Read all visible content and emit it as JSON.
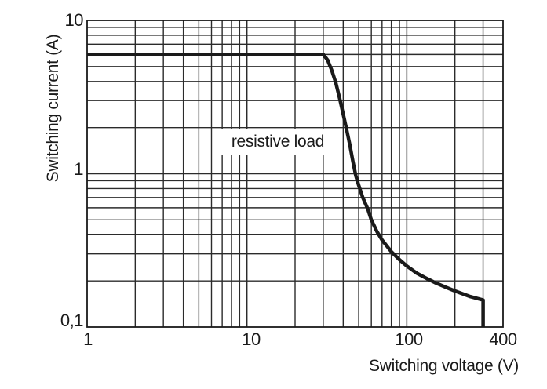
{
  "figure": {
    "annotation": "resistive load"
  },
  "chart_data": {
    "type": "line",
    "title": "",
    "grid": true,
    "legend": "none",
    "x_axis": {
      "label": "Switching voltage (V)",
      "scale": "log",
      "min": 1,
      "max": 400,
      "tick_labels": [
        "1",
        "10",
        "100",
        "400"
      ],
      "tick_values": [
        1,
        10,
        100,
        400
      ],
      "minor_gridlines": [
        2,
        3,
        4,
        5,
        6,
        7,
        8,
        9,
        20,
        30,
        40,
        50,
        60,
        70,
        80,
        90,
        200,
        300
      ]
    },
    "y_axis": {
      "label": "Switching current (A)",
      "scale": "log",
      "min": 0.1,
      "max": 10,
      "tick_labels": [
        "0,1",
        "1",
        "10"
      ],
      "tick_values": [
        0.1,
        1,
        10
      ],
      "minor_gridlines": [
        0.2,
        0.3,
        0.4,
        0.5,
        0.6,
        0.7,
        0.8,
        0.9,
        2,
        3,
        4,
        5,
        6,
        7,
        8,
        9
      ]
    },
    "series": [
      {
        "name": "resistive load",
        "points": [
          [
            1,
            6
          ],
          [
            5,
            6
          ],
          [
            10,
            6
          ],
          [
            20,
            6
          ],
          [
            30,
            6
          ],
          [
            32,
            5.5
          ],
          [
            34,
            4.7
          ],
          [
            36,
            3.9
          ],
          [
            38,
            3.1
          ],
          [
            40,
            2.45
          ],
          [
            42,
            1.95
          ],
          [
            44,
            1.55
          ],
          [
            46,
            1.2
          ],
          [
            48,
            0.97
          ],
          [
            50,
            0.84
          ],
          [
            53,
            0.7
          ],
          [
            57,
            0.59
          ],
          [
            60,
            0.5
          ],
          [
            65,
            0.42
          ],
          [
            70,
            0.37
          ],
          [
            80,
            0.31
          ],
          [
            90,
            0.275
          ],
          [
            100,
            0.25
          ],
          [
            115,
            0.225
          ],
          [
            130,
            0.21
          ],
          [
            150,
            0.195
          ],
          [
            175,
            0.182
          ],
          [
            200,
            0.172
          ],
          [
            250,
            0.158
          ],
          [
            300,
            0.15
          ],
          [
            300,
            0.1
          ]
        ]
      }
    ],
    "colors": {
      "line": "#1a1a1a",
      "grid": "#2b2b2b",
      "border": "#1a1a1a",
      "background": "#ffffff"
    }
  }
}
